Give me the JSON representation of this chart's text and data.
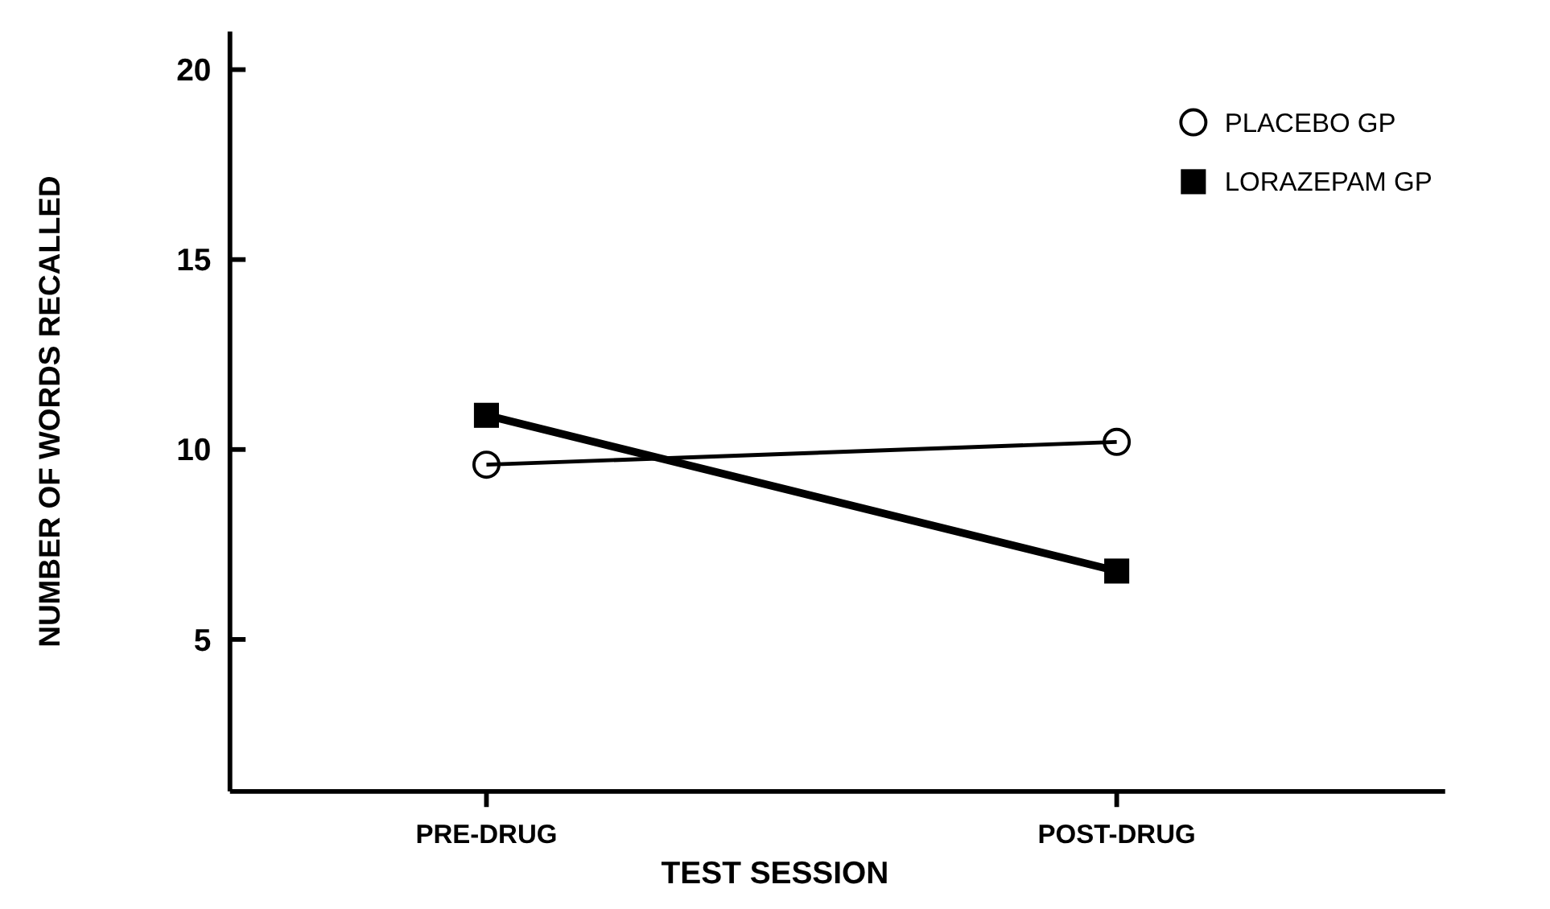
{
  "chart_data": {
    "type": "line",
    "xlabel": "TEST SESSION",
    "ylabel": "NUMBER OF WORDS RECALLED",
    "categories": [
      "PRE-DRUG",
      "POST-DRUG"
    ],
    "ylim": [
      1,
      21
    ],
    "yticks": [
      5,
      10,
      15,
      20
    ],
    "grid": false,
    "legend": "top right",
    "series": [
      {
        "name": "PLACEBO GP",
        "color": "#000000",
        "marker": "circle",
        "values": [
          9.6,
          10.2
        ]
      },
      {
        "name": "LORAZEPAM GP",
        "color": "#000000",
        "marker": "square",
        "values": [
          10.9,
          6.8
        ]
      }
    ]
  }
}
